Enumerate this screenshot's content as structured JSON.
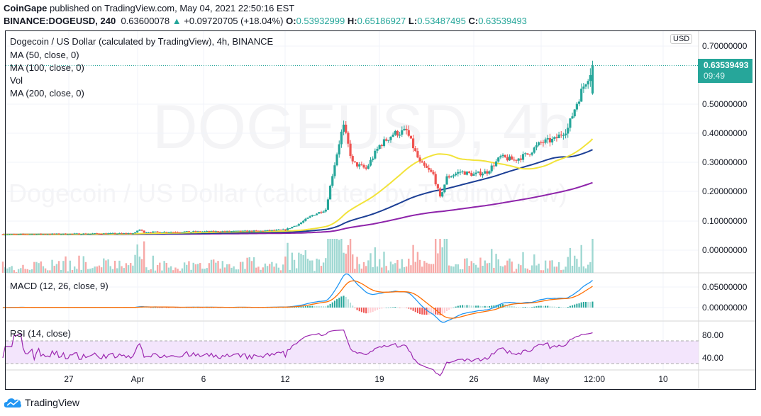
{
  "header": {
    "publisher": "CoinGape",
    "published_text": "published on TradingView.com, May 04, 2021 22:50:16 EST",
    "symbol": "BINANCE:DOGEUSD, 240",
    "last": "0.63600078",
    "change": "+0.09720705 (+18.04%)",
    "o_label": "O:",
    "o": "0.53932999",
    "h_label": "H:",
    "h": "0.65186927",
    "l_label": "L:",
    "l": "0.53487495",
    "c_label": "C:",
    "c": "0.63539493"
  },
  "legend": {
    "title": "Dogecoin / US Dollar (calculated by TradingView), 4h, BINANCE",
    "ma50": "MA (50, close, 0)",
    "ma100": "MA (100, close, 0)",
    "vol": "Vol",
    "ma200": "MA (200, close, 0)",
    "macd": "MACD (12, 26, close, 9)",
    "rsi": "RSI (14, close)"
  },
  "watermark": {
    "big": "DOGEUSD, 4h",
    "small": "Dogecoin / US Dollar (calculated by TradingView)"
  },
  "price_axis": {
    "currency": "USD",
    "labels": [
      "0.70000000",
      "0.50000000",
      "0.40000000",
      "0.30000000",
      "0.20000000",
      "0.10000000",
      "0.00000000"
    ],
    "current_price": "0.63539493",
    "countdown": "09:49"
  },
  "macd_axis": [
    "0.05000000",
    "0.00000000"
  ],
  "rsi_axis": [
    "80.00",
    "40.00"
  ],
  "time_axis": [
    "27",
    "Apr",
    "6",
    "12",
    "19",
    "26",
    "May",
    "12:00",
    "10"
  ],
  "footer": {
    "brand": "TradingView"
  },
  "colors": {
    "up": "#26a69a",
    "down": "#ef5350",
    "ma50": "#f2e33a",
    "ma100": "#1c3f95",
    "ma200": "#8e24aa",
    "macd": "#2196f3",
    "signal": "#ff6d00",
    "rsi": "#9c27b0"
  },
  "chart_data": {
    "type": "candlestick",
    "symbol": "DOGEUSD",
    "interval": "4h",
    "price_path_day_from_mar22": [
      [
        0,
        0.054
      ],
      [
        9.8,
        0.058
      ],
      [
        10.1,
        0.072
      ],
      [
        10.5,
        0.062
      ],
      [
        19,
        0.066
      ],
      [
        21,
        0.07
      ],
      [
        22,
        0.09
      ],
      [
        23,
        0.12
      ],
      [
        24,
        0.14
      ],
      [
        24.5,
        0.26
      ],
      [
        25,
        0.37
      ],
      [
        25.3,
        0.43
      ],
      [
        26,
        0.3
      ],
      [
        27,
        0.28
      ],
      [
        28,
        0.36
      ],
      [
        29,
        0.4
      ],
      [
        30,
        0.41
      ],
      [
        31,
        0.3
      ],
      [
        32,
        0.26
      ],
      [
        32.5,
        0.18
      ],
      [
        33,
        0.25
      ],
      [
        34,
        0.27
      ],
      [
        35,
        0.26
      ],
      [
        36,
        0.27
      ],
      [
        37,
        0.32
      ],
      [
        38,
        0.31
      ],
      [
        39,
        0.33
      ],
      [
        40,
        0.37
      ],
      [
        41,
        0.38
      ],
      [
        42,
        0.42
      ],
      [
        42.6,
        0.5
      ],
      [
        43.3,
        0.58
      ],
      [
        43.9,
        0.636
      ]
    ],
    "price_range": [
      0,
      0.7
    ]
  }
}
